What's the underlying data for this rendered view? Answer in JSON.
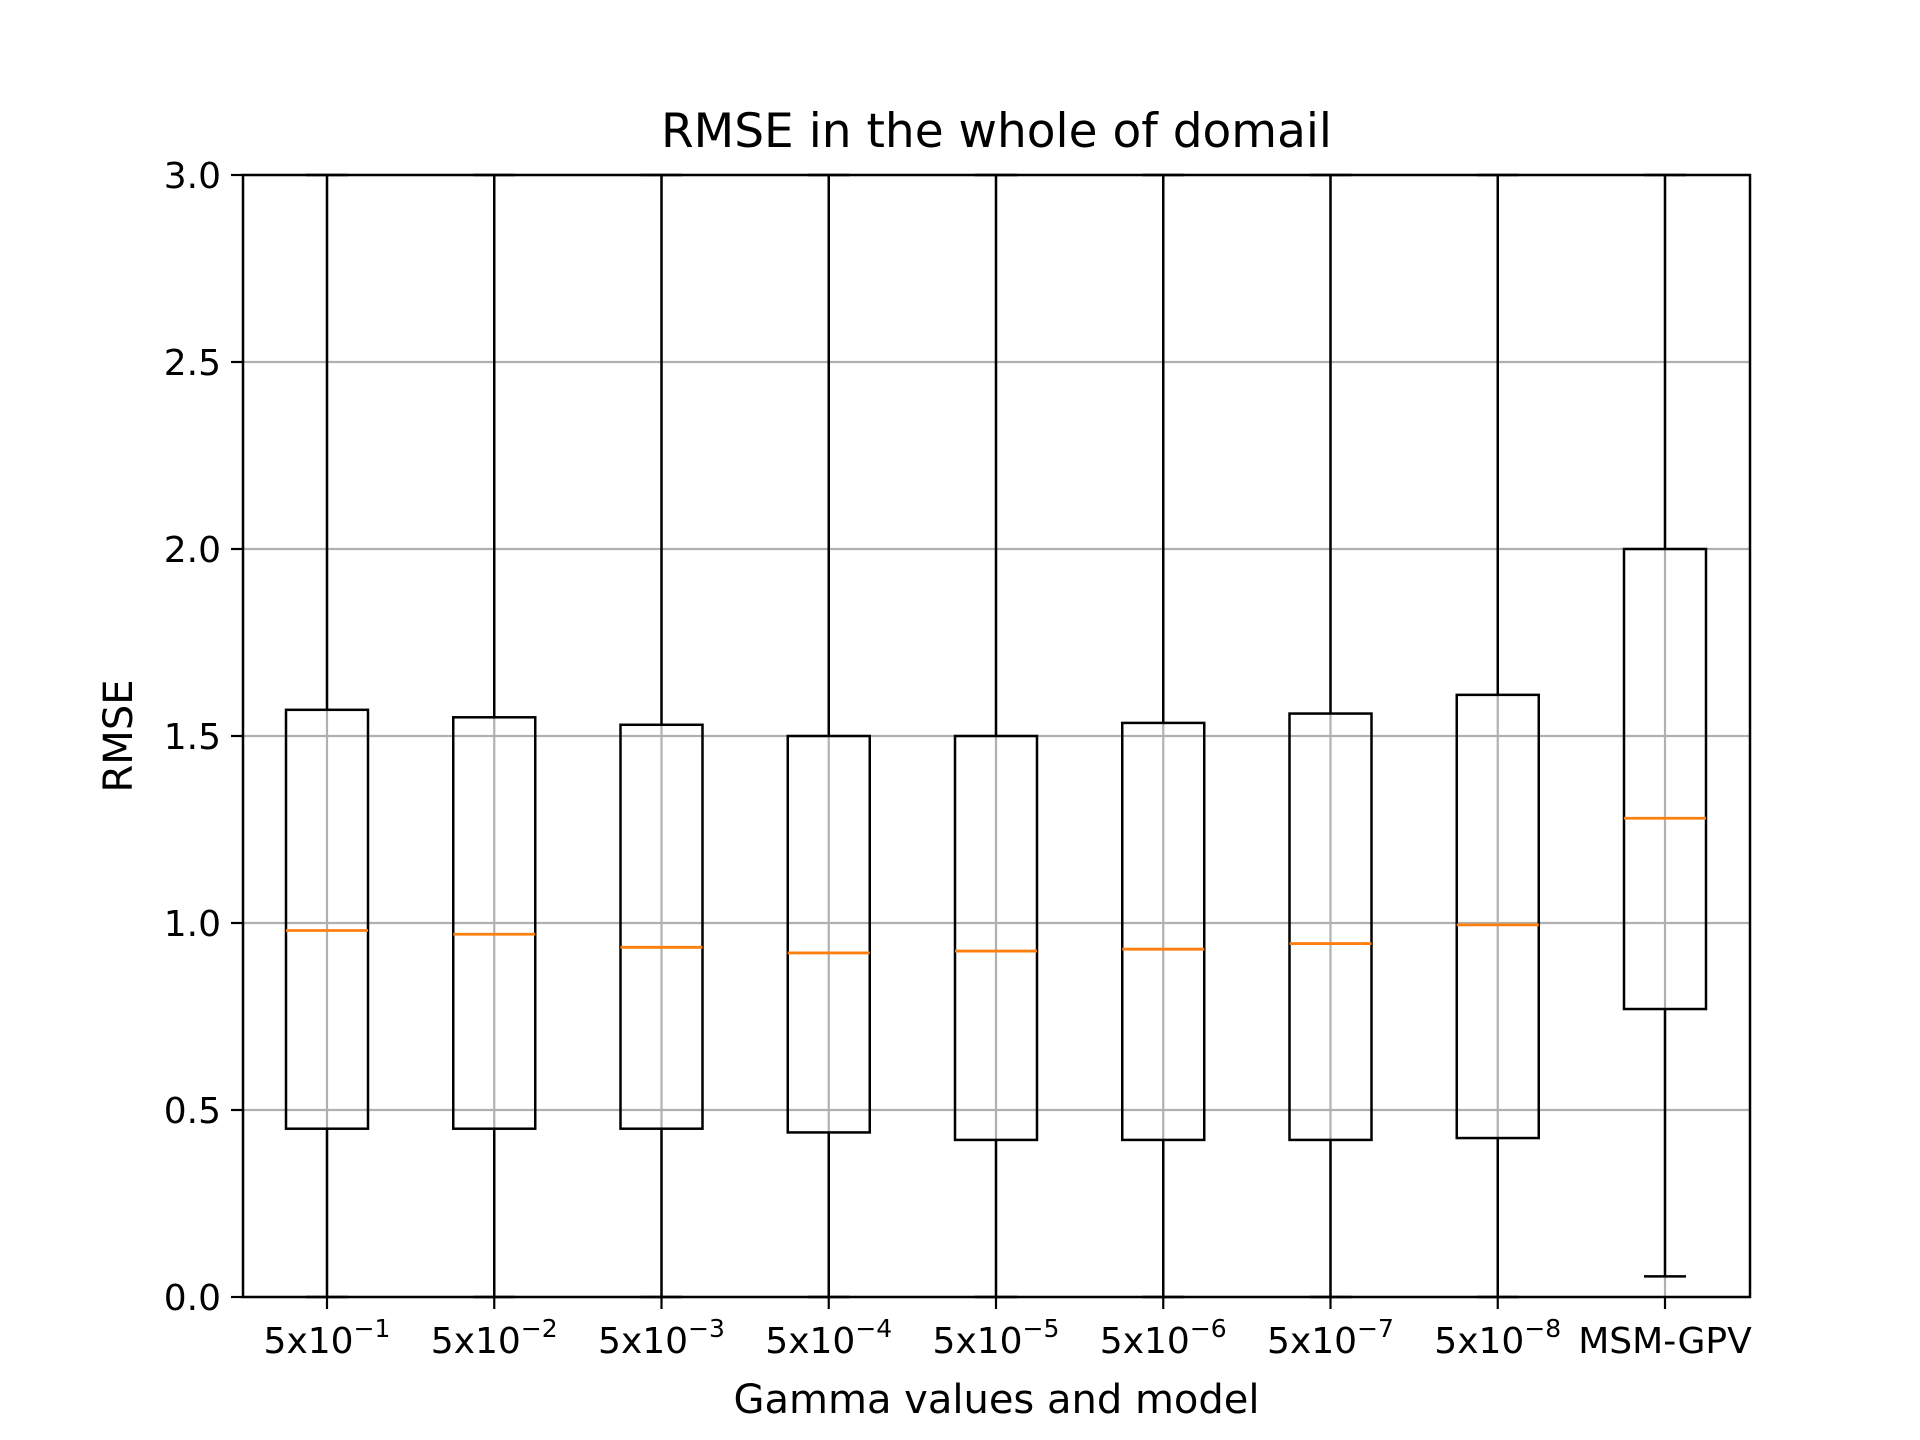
{
  "chart_data": {
    "type": "boxplot",
    "title": "RMSE in the whole of domail",
    "xlabel": "Gamma values and model",
    "ylabel": "RMSE",
    "ylim": [
      0.0,
      3.0
    ],
    "yticks": [
      0.0,
      0.5,
      1.0,
      1.5,
      2.0,
      2.5,
      3.0
    ],
    "ytick_labels": [
      "0.0",
      "0.5",
      "1.0",
      "1.5",
      "2.0",
      "2.5",
      "3.0"
    ],
    "grid": true,
    "categories": [
      {
        "base": "5x10",
        "exp": "−1"
      },
      {
        "base": "5x10",
        "exp": "−2"
      },
      {
        "base": "5x10",
        "exp": "−3"
      },
      {
        "base": "5x10",
        "exp": "−4"
      },
      {
        "base": "5x10",
        "exp": "−5"
      },
      {
        "base": "5x10",
        "exp": "−6"
      },
      {
        "base": "5x10",
        "exp": "−7"
      },
      {
        "base": "5x10",
        "exp": "−8"
      },
      {
        "base": "MSM-GPV",
        "exp": ""
      }
    ],
    "boxes": [
      {
        "whisker_low": 0.0,
        "q1": 0.45,
        "median": 0.98,
        "q3": 1.57,
        "whisker_high": 3.0
      },
      {
        "whisker_low": 0.0,
        "q1": 0.45,
        "median": 0.97,
        "q3": 1.55,
        "whisker_high": 3.0
      },
      {
        "whisker_low": 0.0,
        "q1": 0.45,
        "median": 0.935,
        "q3": 1.53,
        "whisker_high": 3.0
      },
      {
        "whisker_low": 0.0,
        "q1": 0.44,
        "median": 0.92,
        "q3": 1.5,
        "whisker_high": 3.0
      },
      {
        "whisker_low": 0.0,
        "q1": 0.42,
        "median": 0.925,
        "q3": 1.5,
        "whisker_high": 3.0
      },
      {
        "whisker_low": 0.0,
        "q1": 0.42,
        "median": 0.93,
        "q3": 1.535,
        "whisker_high": 3.0
      },
      {
        "whisker_low": 0.0,
        "q1": 0.42,
        "median": 0.945,
        "q3": 1.56,
        "whisker_high": 3.0
      },
      {
        "whisker_low": 0.0,
        "q1": 0.425,
        "median": 0.995,
        "q3": 1.61,
        "whisker_high": 3.0
      },
      {
        "whisker_low": 0.055,
        "q1": 0.77,
        "median": 1.28,
        "q3": 2.0,
        "whisker_high": 3.0
      }
    ],
    "colors": {
      "box": "#000000",
      "median": "#ff7f0e",
      "grid": "#b0b0b0",
      "axes": "#000000"
    }
  }
}
